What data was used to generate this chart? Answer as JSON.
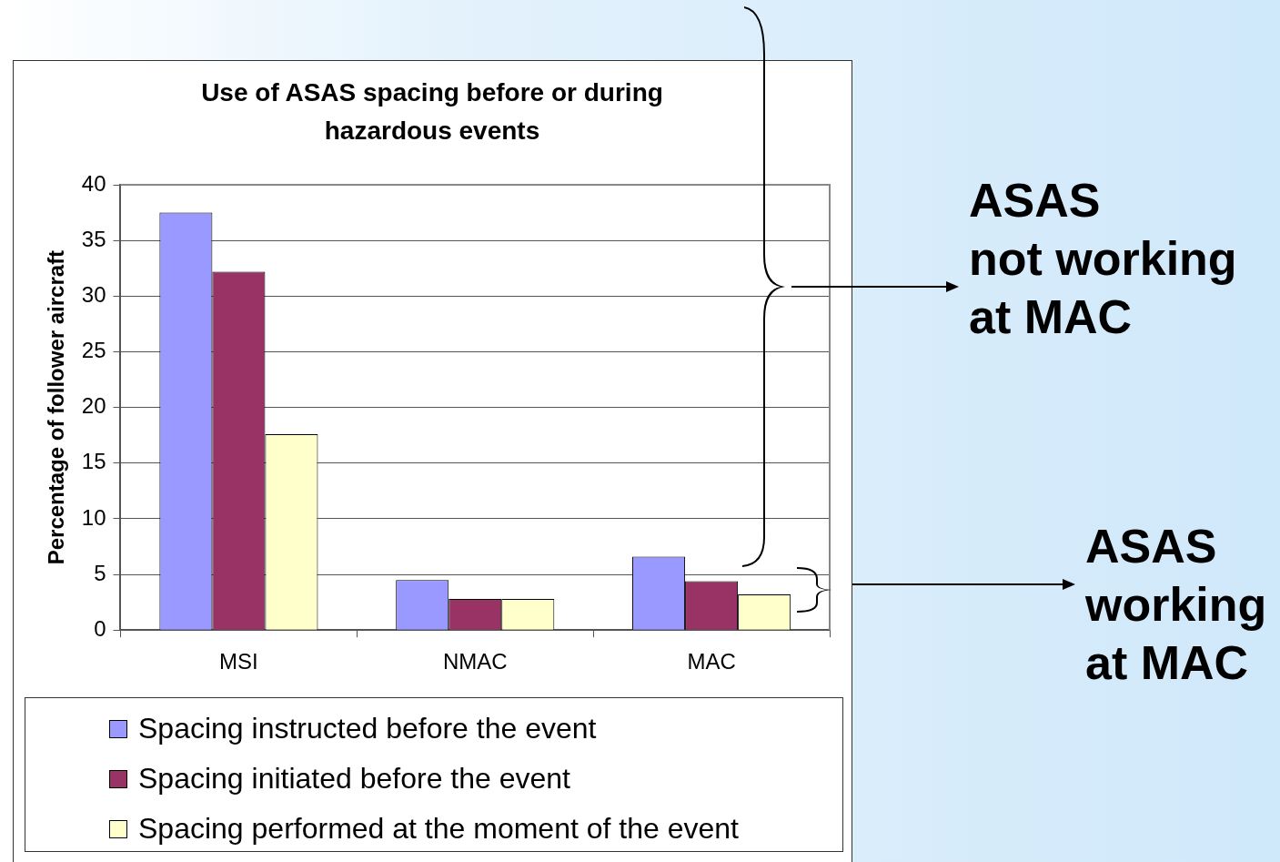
{
  "chart_data": {
    "type": "bar",
    "title": "Use of ASAS spacing before or during hazardous events",
    "ylabel": "Percentage of follower aircraft",
    "categories": [
      "MSI",
      "NMAC",
      "MAC"
    ],
    "series": [
      {
        "name": "Spacing instructed before the event",
        "color": "#9999ff",
        "values": [
          37.5,
          4.5,
          6.6
        ]
      },
      {
        "name": "Spacing initiated before the event",
        "color": "#993366",
        "values": [
          32.2,
          2.8,
          4.4
        ]
      },
      {
        "name": "Spacing performed at the moment of the event",
        "color": "#ffffcc",
        "values": [
          17.6,
          2.8,
          3.2
        ]
      }
    ],
    "ylim": [
      0,
      40
    ],
    "yticks": [
      0,
      5,
      10,
      15,
      20,
      25,
      30,
      35,
      40
    ],
    "grid": "y",
    "legend": "bottom",
    "annotations": [
      "ASAS\nnot working\nat MAC",
      "ASAS\nworking\nat MAC"
    ]
  }
}
